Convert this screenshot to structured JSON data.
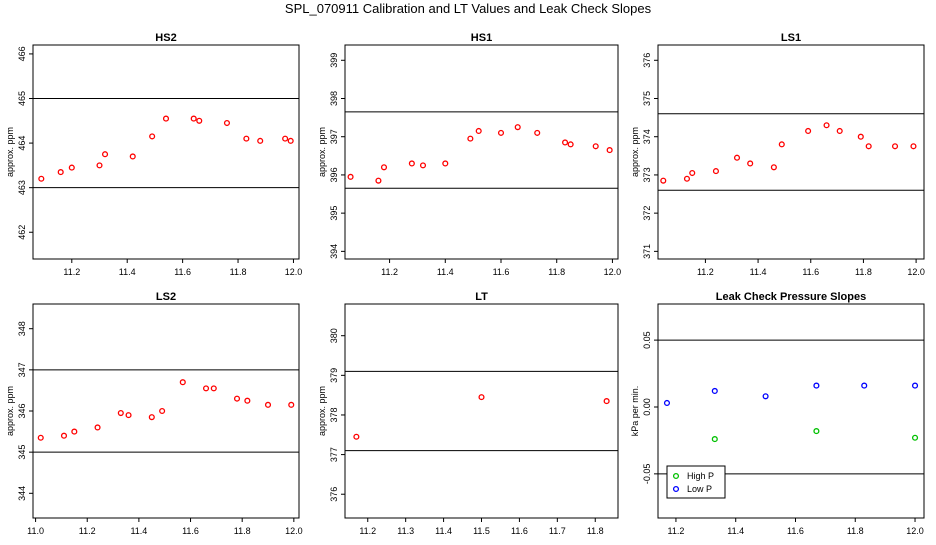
{
  "page": {
    "title": "SPL_070911  Calibration and LT Values and Leak Check Slopes"
  },
  "chart_data": [
    {
      "type": "scatter",
      "title": "HS2",
      "xlabel": "",
      "ylabel": "approx. ppm",
      "xlim": [
        11.06,
        12.02
      ],
      "ylim": [
        461.4,
        466.2
      ],
      "xticks": [
        11.2,
        11.4,
        11.6,
        11.8,
        12.0
      ],
      "xticklabels": [
        "11.2",
        "11.4",
        "11.6",
        "11.8",
        "12.0"
      ],
      "yticks": [
        462,
        463,
        464,
        465,
        466
      ],
      "yticklabels": [
        "462",
        "463",
        "464",
        "465",
        "466"
      ],
      "hlines": [
        465.0,
        463.0
      ],
      "series": [
        {
          "color": "#ff0000",
          "x": [
            11.09,
            11.16,
            11.2,
            11.3,
            11.32,
            11.42,
            11.49,
            11.54,
            11.64,
            11.66,
            11.76,
            11.83,
            11.88,
            11.97,
            11.99
          ],
          "y": [
            463.2,
            463.35,
            463.45,
            463.5,
            463.75,
            463.7,
            464.15,
            464.55,
            464.55,
            464.5,
            464.45,
            464.1,
            464.05,
            464.1,
            464.05
          ]
        }
      ]
    },
    {
      "type": "scatter",
      "title": "HS1",
      "xlabel": "",
      "ylabel": "approx. ppm",
      "xlim": [
        11.04,
        12.02
      ],
      "ylim": [
        393.8,
        399.4
      ],
      "xticks": [
        11.2,
        11.4,
        11.6,
        11.8,
        12.0
      ],
      "xticklabels": [
        "11.2",
        "11.4",
        "11.6",
        "11.8",
        "12.0"
      ],
      "yticks": [
        394,
        395,
        396,
        397,
        398,
        399
      ],
      "yticklabels": [
        "394",
        "395",
        "396",
        "397",
        "398",
        "399"
      ],
      "hlines": [
        397.65,
        395.65
      ],
      "series": [
        {
          "color": "#ff0000",
          "x": [
            11.06,
            11.16,
            11.18,
            11.28,
            11.32,
            11.4,
            11.49,
            11.52,
            11.6,
            11.66,
            11.73,
            11.83,
            11.85,
            11.94,
            11.99
          ],
          "y": [
            395.95,
            395.85,
            396.2,
            396.3,
            396.25,
            396.3,
            396.95,
            397.15,
            397.1,
            397.25,
            397.1,
            396.85,
            396.8,
            396.75,
            396.65
          ]
        }
      ]
    },
    {
      "type": "scatter",
      "title": "LS1",
      "xlabel": "",
      "ylabel": "approx. ppm",
      "xlim": [
        11.02,
        12.03
      ],
      "ylim": [
        370.8,
        376.4
      ],
      "xticks": [
        11.2,
        11.4,
        11.6,
        11.8,
        12.0
      ],
      "xticklabels": [
        "11.2",
        "11.4",
        "11.6",
        "11.8",
        "12.0"
      ],
      "yticks": [
        371,
        372,
        373,
        374,
        375,
        376
      ],
      "yticklabels": [
        "371",
        "372",
        "373",
        "374",
        "375",
        "376"
      ],
      "hlines": [
        374.6,
        372.6
      ],
      "series": [
        {
          "color": "#ff0000",
          "x": [
            11.04,
            11.13,
            11.15,
            11.24,
            11.32,
            11.37,
            11.46,
            11.49,
            11.59,
            11.66,
            11.71,
            11.79,
            11.82,
            11.92,
            11.99
          ],
          "y": [
            372.85,
            372.9,
            373.05,
            373.1,
            373.45,
            373.3,
            373.2,
            373.8,
            374.15,
            374.3,
            374.15,
            374.0,
            373.75,
            373.75,
            373.75
          ]
        }
      ]
    },
    {
      "type": "scatter",
      "title": "LS2",
      "xlabel": "",
      "ylabel": "approx. ppm",
      "xlim": [
        10.99,
        12.02
      ],
      "ylim": [
        343.4,
        348.6
      ],
      "xticks": [
        11.0,
        11.2,
        11.4,
        11.6,
        11.8,
        12.0
      ],
      "xticklabels": [
        "11.0",
        "11.2",
        "11.4",
        "11.6",
        "11.8",
        "12.0"
      ],
      "yticks": [
        344,
        345,
        346,
        347,
        348
      ],
      "yticklabels": [
        "344",
        "345",
        "346",
        "347",
        "348"
      ],
      "hlines": [
        347.0,
        345.0
      ],
      "series": [
        {
          "color": "#ff0000",
          "x": [
            11.02,
            11.11,
            11.15,
            11.24,
            11.33,
            11.36,
            11.45,
            11.49,
            11.57,
            11.66,
            11.69,
            11.78,
            11.82,
            11.9,
            11.99
          ],
          "y": [
            345.35,
            345.4,
            345.5,
            345.6,
            345.95,
            345.9,
            345.85,
            346.0,
            346.7,
            346.55,
            346.55,
            346.3,
            346.25,
            346.15,
            346.15
          ]
        }
      ]
    },
    {
      "type": "scatter",
      "title": "LT",
      "xlabel": "",
      "ylabel": "approx. ppm",
      "xlim": [
        11.14,
        11.86
      ],
      "ylim": [
        375.4,
        380.8
      ],
      "xticks": [
        11.2,
        11.3,
        11.4,
        11.5,
        11.6,
        11.7,
        11.8
      ],
      "xticklabels": [
        "11.2",
        "11.3",
        "11.4",
        "11.5",
        "11.6",
        "11.7",
        "11.8"
      ],
      "yticks": [
        376,
        377,
        378,
        379,
        380
      ],
      "yticklabels": [
        "376",
        "377",
        "378",
        "379",
        "380"
      ],
      "hlines": [
        379.1,
        377.1
      ],
      "series": [
        {
          "color": "#ff0000",
          "x": [
            11.17,
            11.5,
            11.83
          ],
          "y": [
            377.45,
            378.45,
            378.35
          ]
        }
      ]
    },
    {
      "type": "scatter",
      "title": "Leak Check Pressure Slopes",
      "xlabel": "",
      "ylabel": "kPa per min.",
      "xlim": [
        11.14,
        12.03
      ],
      "ylim": [
        -0.083,
        0.077
      ],
      "xticks": [
        11.2,
        11.4,
        11.6,
        11.8,
        12.0
      ],
      "xticklabels": [
        "11.2",
        "11.4",
        "11.6",
        "11.8",
        "12.0"
      ],
      "yticks": [
        -0.05,
        0.0,
        0.05
      ],
      "yticklabels": [
        "-0.05",
        "0.00",
        "0.05"
      ],
      "hlines": [
        0.05,
        -0.05
      ],
      "legend": "bottom-left",
      "series": [
        {
          "name": "High P",
          "color": "#00c000",
          "x": [
            11.33,
            11.67,
            12.0
          ],
          "y": [
            -0.024,
            -0.018,
            -0.023
          ]
        },
        {
          "name": "Low P",
          "color": "#0000ff",
          "x": [
            11.17,
            11.33,
            11.5,
            11.67,
            11.83,
            12.0
          ],
          "y": [
            0.003,
            0.012,
            0.008,
            0.016,
            0.016,
            0.016
          ]
        }
      ]
    }
  ]
}
